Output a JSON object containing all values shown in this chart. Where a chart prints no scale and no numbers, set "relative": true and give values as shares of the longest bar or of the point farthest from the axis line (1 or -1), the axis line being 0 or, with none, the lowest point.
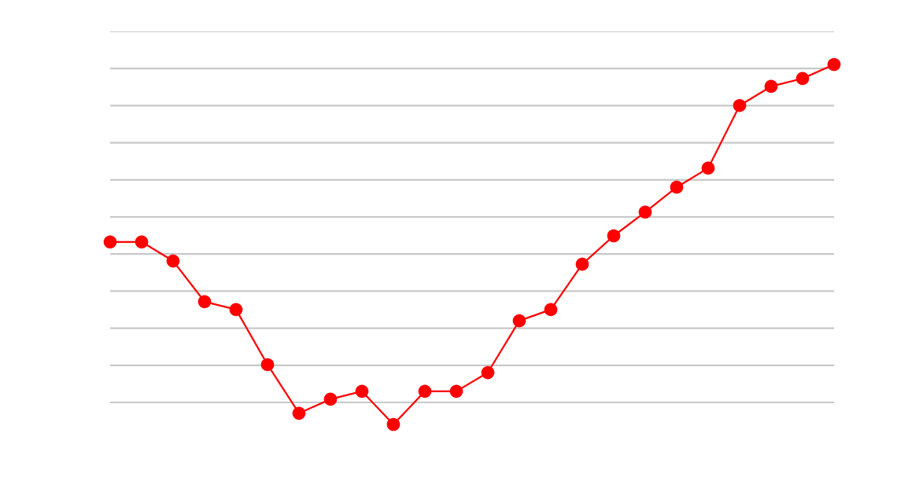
{
  "chart_data": {
    "type": "line",
    "relative": true,
    "grid": "y",
    "marker": "circle",
    "line_style": "solid",
    "categories": [
      null,
      null,
      null,
      null,
      null,
      null,
      null,
      null,
      null,
      null,
      null,
      null,
      null,
      null,
      null,
      null,
      null,
      null,
      null,
      null,
      null,
      null,
      null,
      null
    ],
    "series": [
      {
        "color": "#ff0000",
        "values": [
          0.507,
          0.507,
          0.454,
          0.341,
          0.319,
          0.166,
          0.031,
          0.07,
          0.092,
          0,
          0.092,
          0.092,
          0.144,
          0.288,
          0.319,
          0.445,
          0.524,
          0.59,
          0.659,
          0.712,
          0.886,
          0.939,
          0.961,
          1
        ]
      }
    ]
  }
}
